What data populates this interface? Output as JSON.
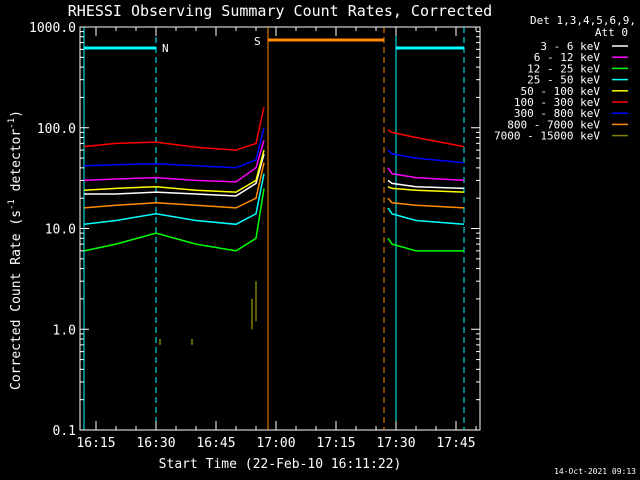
{
  "chart_data": {
    "type": "line",
    "title": "RHESSI Observing Summary Count Rates, Corrected",
    "xlabel": "Start Time (22-Feb-10 16:11:22)",
    "ylabel": "Corrected Count Rate (s⁻¹ detector⁻¹)",
    "ylabel_parts": {
      "pre": "Corrected Count Rate (s",
      "sup1": "-1",
      "mid": " detector",
      "sup2": "-1",
      "post": ")"
    },
    "y_scale": "log",
    "ylim": [
      0.1,
      1000
    ],
    "y_ticks": [
      {
        "value": 0.1,
        "label": "0.1"
      },
      {
        "value": 1,
        "label": "1.0"
      },
      {
        "value": 10,
        "label": "10.0"
      },
      {
        "value": 100,
        "label": "100.0"
      },
      {
        "value": 1000,
        "label": "1000.0"
      }
    ],
    "xlim": [
      "16:11",
      "17:51"
    ],
    "x_ticks": [
      "16:15",
      "16:30",
      "16:45",
      "17:00",
      "17:15",
      "17:30",
      "17:45"
    ],
    "grid": false,
    "legend_position": "right",
    "legend_header": [
      "Det 1,3,4,5,6,9,",
      "Att 0"
    ],
    "series": [
      {
        "name": "3 - 6 keV",
        "color": "#ffffff",
        "x": [
          "16:12",
          "16:20",
          "16:30",
          "16:40",
          "16:50",
          "16:55",
          "16:57",
          "17:28",
          "17:29",
          "17:35",
          "17:47"
        ],
        "y": [
          22,
          22,
          23,
          22,
          21,
          28,
          55,
          30,
          28,
          26,
          25
        ]
      },
      {
        "name": "6 - 12 keV",
        "color": "#ff00ff",
        "x": [
          "16:12",
          "16:20",
          "16:30",
          "16:40",
          "16:50",
          "16:55",
          "16:57",
          "17:28",
          "17:29",
          "17:35",
          "17:47"
        ],
        "y": [
          30,
          31,
          32,
          30,
          29,
          40,
          75,
          40,
          35,
          32,
          30
        ]
      },
      {
        "name": "12 - 25 keV",
        "color": "#00ff00",
        "x": [
          "16:12",
          "16:20",
          "16:30",
          "16:40",
          "16:50",
          "16:55",
          "16:57",
          "17:28",
          "17:29",
          "17:35",
          "17:47"
        ],
        "y": [
          6,
          7,
          9,
          7,
          6,
          8,
          25,
          8,
          7,
          6,
          6
        ]
      },
      {
        "name": "25 - 50 keV",
        "color": "#00ffff",
        "x": [
          "16:12",
          "16:20",
          "16:30",
          "16:40",
          "16:50",
          "16:55",
          "16:57",
          "17:28",
          "17:29",
          "17:35",
          "17:47"
        ],
        "y": [
          11,
          12,
          14,
          12,
          11,
          14,
          35,
          16,
          14,
          12,
          11
        ]
      },
      {
        "name": "50 - 100 keV",
        "color": "#ffff00",
        "x": [
          "16:12",
          "16:20",
          "16:30",
          "16:40",
          "16:50",
          "16:55",
          "16:57",
          "17:28",
          "17:29",
          "17:35",
          "17:47"
        ],
        "y": [
          24,
          25,
          26,
          24,
          23,
          30,
          60,
          26,
          25,
          24,
          23
        ]
      },
      {
        "name": "100 - 300 keV",
        "color": "#ff0000",
        "x": [
          "16:12",
          "16:20",
          "16:30",
          "16:40",
          "16:50",
          "16:55",
          "16:57",
          "17:28",
          "17:29",
          "17:35",
          "17:47"
        ],
        "y": [
          65,
          70,
          72,
          64,
          60,
          70,
          160,
          95,
          90,
          80,
          65
        ]
      },
      {
        "name": "300 - 800 keV",
        "color": "#0000ff",
        "x": [
          "16:12",
          "16:20",
          "16:30",
          "16:40",
          "16:50",
          "16:55",
          "16:57",
          "17:28",
          "17:29",
          "17:35",
          "17:47"
        ],
        "y": [
          42,
          43,
          44,
          42,
          40,
          48,
          100,
          60,
          55,
          50,
          45
        ]
      },
      {
        "name": "800 - 7000 keV",
        "color": "#ff8c00",
        "x": [
          "16:12",
          "16:20",
          "16:30",
          "16:40",
          "16:50",
          "16:55",
          "16:57",
          "17:28",
          "17:29",
          "17:35",
          "17:47"
        ],
        "y": [
          16,
          17,
          18,
          17,
          16,
          20,
          45,
          20,
          18,
          17,
          16
        ]
      },
      {
        "name": "7000 - 15000 keV",
        "color": "#808000",
        "x": [
          "16:31",
          "16:31",
          "16:39",
          "16:39",
          "16:54",
          "16:54",
          "16:55",
          "16:55"
        ],
        "y": [
          0.7,
          0.8,
          0.7,
          0.8,
          1.0,
          2.0,
          1.2,
          3.0
        ]
      }
    ],
    "annotations": [
      {
        "label": "N",
        "x": "16:30",
        "color": "#00ffff"
      },
      {
        "label": "S",
        "x": "16:58",
        "color": "#ff8c00"
      }
    ]
  },
  "footer": {
    "date": "14-Oct-2021 09:13"
  }
}
